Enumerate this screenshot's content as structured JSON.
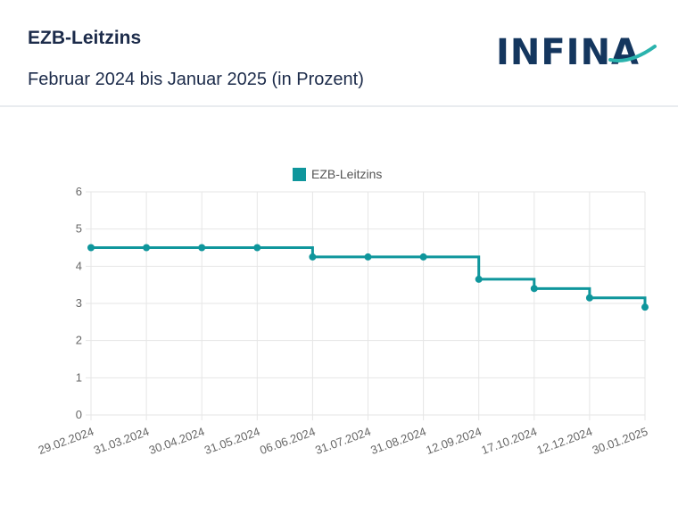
{
  "header": {
    "title": "EZB-Leitzins",
    "subtitle": "Februar 2024 bis Januar 2025 (in Prozent)",
    "logo_text": "INFINA"
  },
  "colors": {
    "series": "#0f969c",
    "grid": "#e6e6e6",
    "header_text": "#1c2b4a",
    "logo": "#14365e"
  },
  "chart_data": {
    "type": "line",
    "stepped": true,
    "legend": "top",
    "grid": true,
    "categories": [
      "29.02.2024",
      "31.03.2024",
      "30.04.2024",
      "31.05.2024",
      "06.06.2024",
      "31.07.2024",
      "31.08.2024",
      "12.09.2024",
      "17.10.2024",
      "12.12.2024",
      "30.01.2025"
    ],
    "series": [
      {
        "name": "EZB-Leitzins",
        "values": [
          4.5,
          4.5,
          4.5,
          4.5,
          4.25,
          4.25,
          4.25,
          3.65,
          3.4,
          3.15,
          2.9
        ]
      }
    ],
    "yticks": [
      "0",
      "1",
      "2",
      "3",
      "4",
      "5",
      "6"
    ],
    "ylim": [
      0,
      6
    ]
  }
}
